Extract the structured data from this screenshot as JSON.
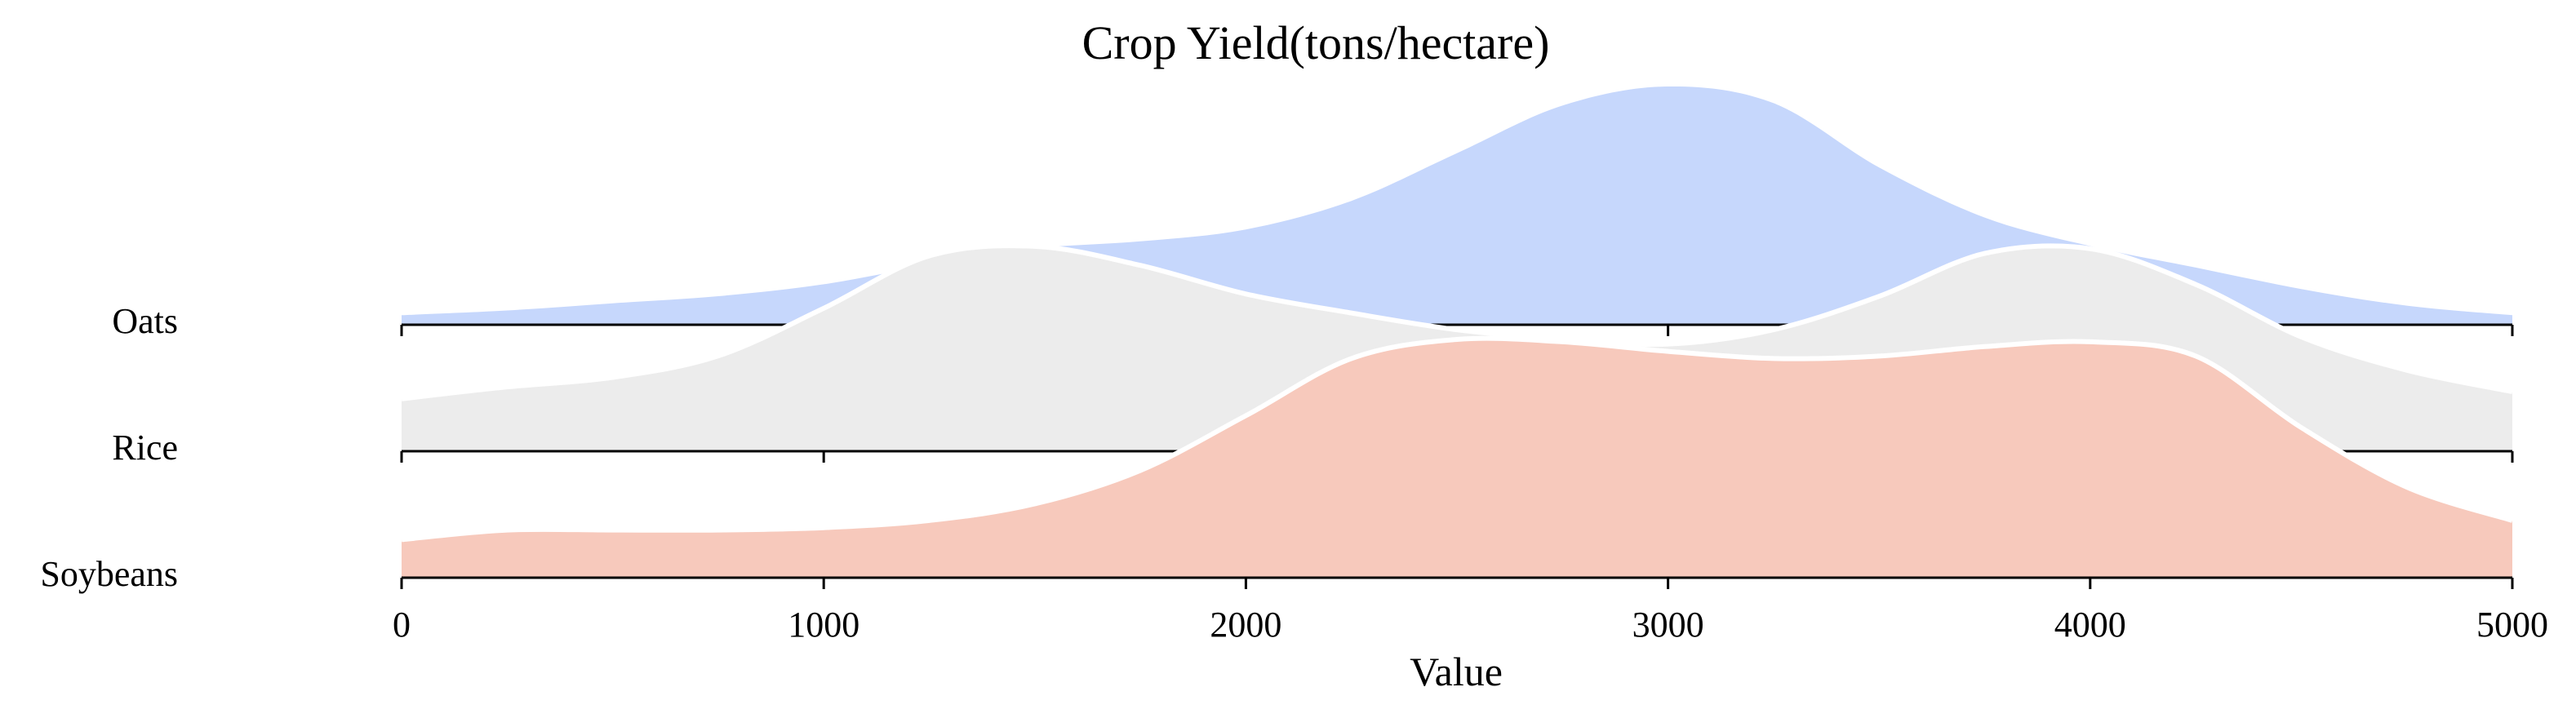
{
  "chart_data": {
    "type": "ridgeline",
    "title": "Crop Yield(tons/hectare)",
    "xlabel": "Value",
    "ylabel": "",
    "xlim": [
      0,
      5000
    ],
    "x_ticks": [
      0,
      1000,
      2000,
      3000,
      4000,
      5000
    ],
    "grid": false,
    "legend": "none",
    "x": [
      0,
      250,
      500,
      750,
      1000,
      1250,
      1500,
      1750,
      2000,
      2250,
      2500,
      2750,
      3000,
      3250,
      3500,
      3750,
      4000,
      4250,
      4500,
      4750,
      5000
    ],
    "series": [
      {
        "name": "Oats",
        "color": "#c6d7fc",
        "values": [
          0.04,
          0.06,
          0.09,
          0.12,
          0.17,
          0.25,
          0.32,
          0.35,
          0.4,
          0.52,
          0.72,
          0.92,
          1.0,
          0.93,
          0.66,
          0.45,
          0.33,
          0.24,
          0.15,
          0.08,
          0.04
        ]
      },
      {
        "name": "Rice",
        "color": "#ececec",
        "values": [
          0.22,
          0.27,
          0.31,
          0.4,
          0.6,
          0.82,
          0.86,
          0.78,
          0.66,
          0.58,
          0.51,
          0.47,
          0.45,
          0.51,
          0.65,
          0.83,
          0.85,
          0.7,
          0.48,
          0.34,
          0.25
        ]
      },
      {
        "name": "Soybeans",
        "color": "#f7c9bc",
        "values": [
          0.16,
          0.2,
          0.2,
          0.2,
          0.21,
          0.24,
          0.31,
          0.45,
          0.68,
          0.92,
          1.0,
          0.99,
          0.95,
          0.92,
          0.93,
          0.97,
          0.99,
          0.93,
          0.63,
          0.38,
          0.24
        ]
      }
    ]
  }
}
